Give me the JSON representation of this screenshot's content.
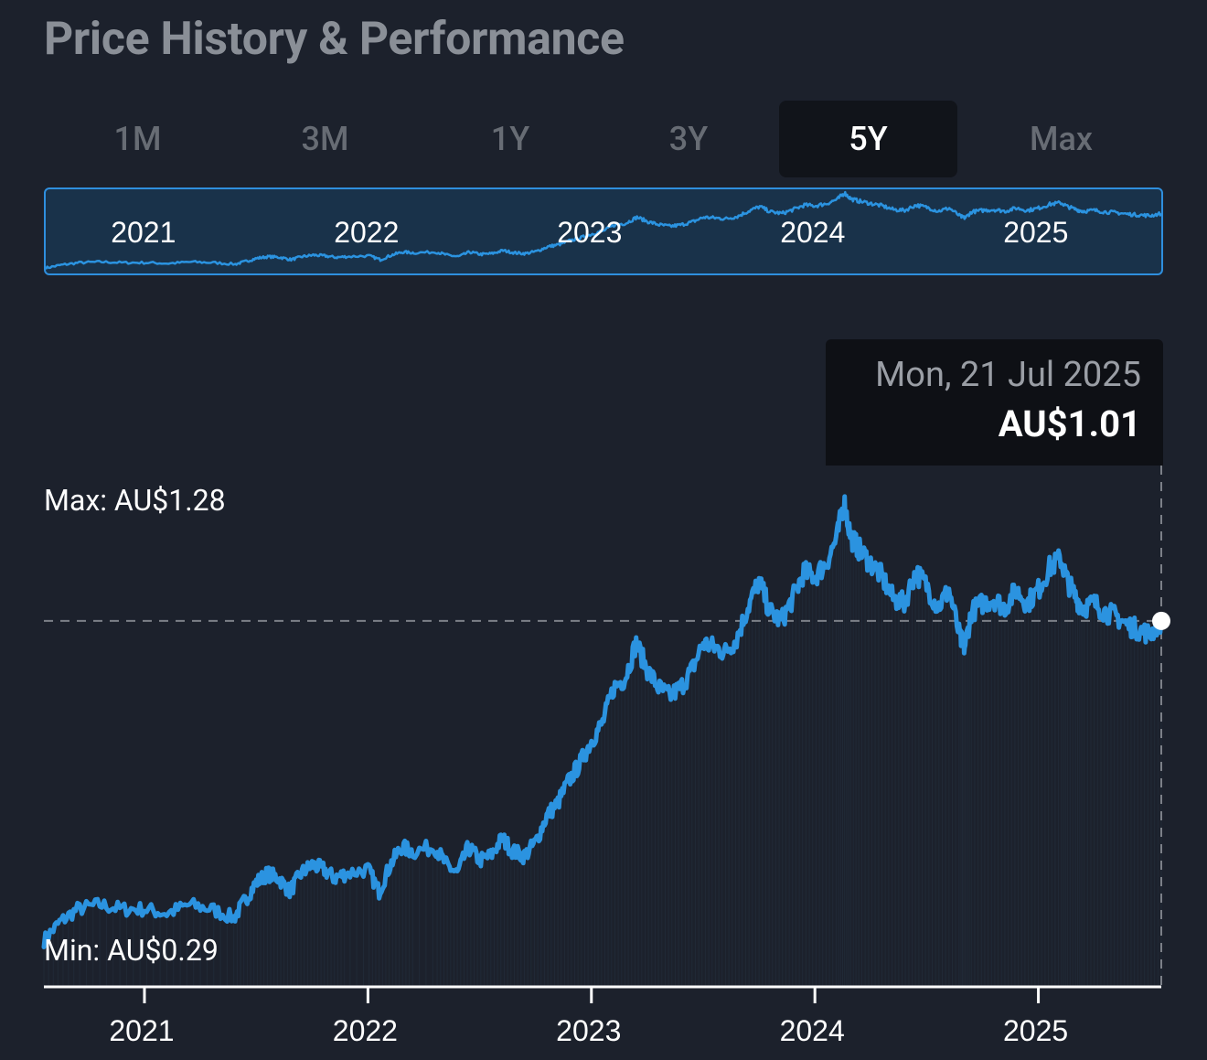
{
  "header": {
    "title": "Price History & Performance"
  },
  "range_tabs": [
    {
      "label": "1M",
      "active": false
    },
    {
      "label": "3M",
      "active": false
    },
    {
      "label": "1Y",
      "active": false
    },
    {
      "label": "3Y",
      "active": false
    },
    {
      "label": "5Y",
      "active": true
    },
    {
      "label": "Max",
      "active": false
    }
  ],
  "navigator": {
    "year_labels": [
      "2021",
      "2022",
      "2023",
      "2024",
      "2025"
    ]
  },
  "tooltip": {
    "date": "Mon, 21 Jul 2025",
    "price": "AU$1.01"
  },
  "labels": {
    "max": "Max: AU$1.28",
    "min": "Min: AU$0.29"
  },
  "colors": {
    "line": "#2b93e0",
    "background": "#1c212c",
    "tooltip_bg": "#0e1015",
    "muted_text": "#8a8f97",
    "navigator_fill": "#19324a"
  },
  "chart_data": {
    "type": "line",
    "title": "Price History & Performance",
    "xlabel": "",
    "ylabel": "AU$",
    "x_range": [
      2020.55,
      2025.55
    ],
    "ylim": [
      0.29,
      1.28
    ],
    "xticks": [
      {
        "value": 2021.0,
        "label": "2021"
      },
      {
        "value": 2022.0,
        "label": "2022"
      },
      {
        "value": 2023.0,
        "label": "2023"
      },
      {
        "value": 2024.0,
        "label": "2024"
      },
      {
        "value": 2025.0,
        "label": "2025"
      }
    ],
    "current": {
      "x": 2025.55,
      "value": 1.01
    },
    "series": [
      {
        "name": "Price",
        "x": [
          2020.55,
          2020.62,
          2020.7,
          2020.8,
          2020.9,
          2021.0,
          2021.1,
          2021.2,
          2021.3,
          2021.4,
          2021.45,
          2021.5,
          2021.55,
          2021.6,
          2021.65,
          2021.7,
          2021.75,
          2021.8,
          2021.85,
          2021.9,
          2022.0,
          2022.05,
          2022.1,
          2022.15,
          2022.2,
          2022.3,
          2022.35,
          2022.4,
          2022.45,
          2022.5,
          2022.55,
          2022.6,
          2022.65,
          2022.7,
          2022.75,
          2022.8,
          2022.85,
          2022.9,
          2022.95,
          2023.0,
          2023.05,
          2023.1,
          2023.15,
          2023.2,
          2023.25,
          2023.3,
          2023.35,
          2023.4,
          2023.45,
          2023.5,
          2023.55,
          2023.6,
          2023.65,
          2023.7,
          2023.75,
          2023.8,
          2023.85,
          2023.9,
          2023.95,
          2024.0,
          2024.05,
          2024.1,
          2024.13,
          2024.16,
          2024.2,
          2024.25,
          2024.3,
          2024.35,
          2024.4,
          2024.45,
          2024.5,
          2024.55,
          2024.6,
          2024.65,
          2024.67,
          2024.7,
          2024.75,
          2024.8,
          2024.85,
          2024.9,
          2024.95,
          2025.0,
          2025.05,
          2025.1,
          2025.13,
          2025.17,
          2025.2,
          2025.25,
          2025.3,
          2025.35,
          2025.4,
          2025.45,
          2025.5,
          2025.55
        ],
        "values": [
          0.29,
          0.33,
          0.36,
          0.37,
          0.36,
          0.36,
          0.35,
          0.37,
          0.36,
          0.34,
          0.38,
          0.42,
          0.44,
          0.43,
          0.4,
          0.44,
          0.46,
          0.45,
          0.43,
          0.44,
          0.45,
          0.4,
          0.46,
          0.5,
          0.49,
          0.5,
          0.46,
          0.44,
          0.5,
          0.47,
          0.48,
          0.52,
          0.49,
          0.48,
          0.51,
          0.57,
          0.6,
          0.65,
          0.69,
          0.74,
          0.78,
          0.86,
          0.88,
          0.96,
          0.9,
          0.86,
          0.84,
          0.86,
          0.9,
          0.96,
          0.95,
          0.94,
          0.97,
          1.04,
          1.1,
          1.03,
          1.01,
          1.06,
          1.12,
          1.11,
          1.14,
          1.2,
          1.28,
          1.2,
          1.17,
          1.14,
          1.11,
          1.06,
          1.05,
          1.12,
          1.09,
          1.04,
          1.08,
          0.97,
          0.95,
          1.03,
          1.05,
          1.06,
          1.04,
          1.08,
          1.05,
          1.08,
          1.13,
          1.15,
          1.1,
          1.06,
          1.04,
          1.05,
          1.03,
          1.02,
          1.0,
          0.99,
          0.98,
          1.01
        ]
      }
    ]
  }
}
